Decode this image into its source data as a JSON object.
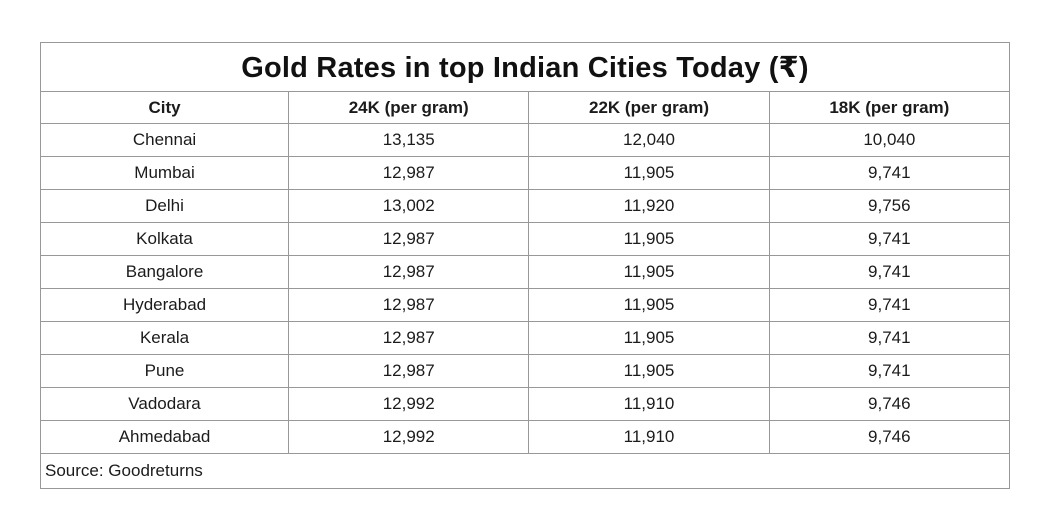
{
  "title": "Gold Rates in top Indian Cities Today (₹)",
  "table": {
    "columns": [
      "City",
      "24K (per gram)",
      "22K (per gram)",
      "18K (per gram)"
    ],
    "rows": [
      [
        "Chennai",
        "13,135",
        "12,040",
        "10,040"
      ],
      [
        "Mumbai",
        "12,987",
        "11,905",
        "9,741"
      ],
      [
        "Delhi",
        "13,002",
        "11,920",
        "9,756"
      ],
      [
        "Kolkata",
        "12,987",
        "11,905",
        "9,741"
      ],
      [
        "Bangalore",
        "12,987",
        "11,905",
        "9,741"
      ],
      [
        "Hyderabad",
        "12,987",
        "11,905",
        "9,741"
      ],
      [
        "Kerala",
        "12,987",
        "11,905",
        "9,741"
      ],
      [
        "Pune",
        "12,987",
        "11,905",
        "9,741"
      ],
      [
        "Vadodara",
        "12,992",
        "11,910",
        "9,746"
      ],
      [
        "Ahmedabad",
        "12,992",
        "11,910",
        "9,746"
      ]
    ],
    "source": "Source: Goodreturns"
  },
  "colors": {
    "background": "#ffffff",
    "border_outer": "#7e7e7e",
    "border_inner": "#989898",
    "text": "#1b1b1b"
  },
  "chart_data": {
    "type": "table",
    "title": "Gold Rates in top Indian Cities Today (₹)",
    "columns": [
      "City",
      "24K (per gram)",
      "22K (per gram)",
      "18K (per gram)"
    ],
    "rows": [
      [
        "Chennai",
        13135,
        12040,
        10040
      ],
      [
        "Mumbai",
        12987,
        11905,
        9741
      ],
      [
        "Delhi",
        13002,
        11920,
        9756
      ],
      [
        "Kolkata",
        12987,
        11905,
        9741
      ],
      [
        "Bangalore",
        12987,
        11905,
        9741
      ],
      [
        "Hyderabad",
        12987,
        11905,
        9741
      ],
      [
        "Kerala",
        12987,
        11905,
        9741
      ],
      [
        "Pune",
        12987,
        11905,
        9741
      ],
      [
        "Vadodara",
        12992,
        11910,
        9746
      ],
      [
        "Ahmedabad",
        12992,
        11910,
        9746
      ]
    ],
    "currency": "INR (₹)",
    "source": "Source: Goodreturns",
    "layout": "title row spanning 4 columns; bold centered headers; centered values; left-aligned source footer row"
  }
}
